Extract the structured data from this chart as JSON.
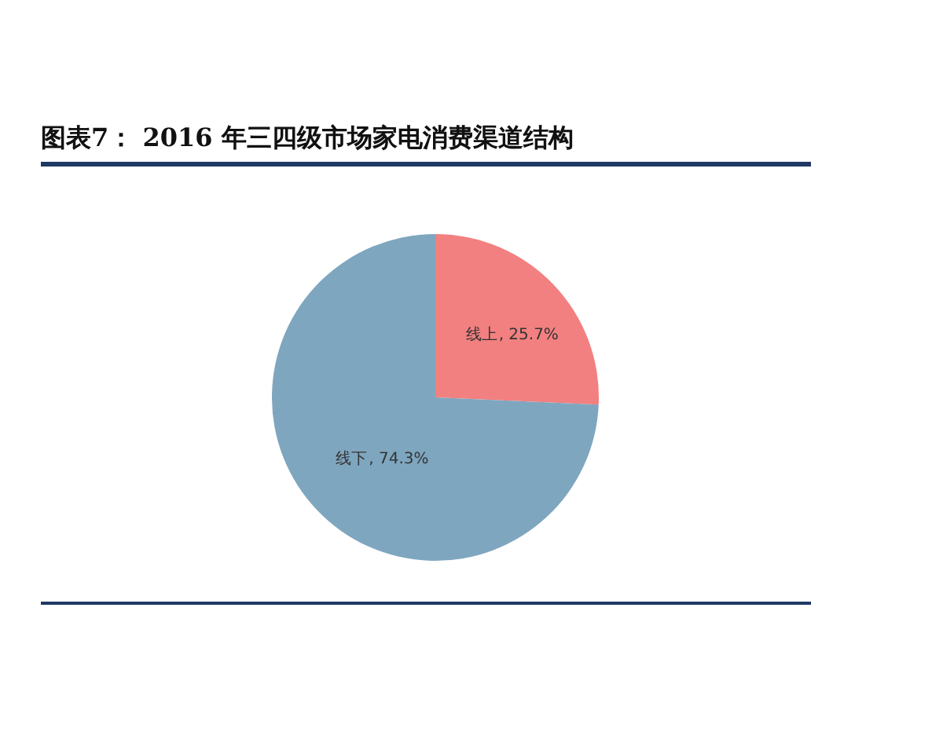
{
  "chart_data": {
    "type": "pie",
    "title": "图表7： 2016 年三四级市场家电消费渠道结构",
    "categories": [
      "线上",
      "线下"
    ],
    "values": [
      25.7,
      74.3
    ],
    "colors": [
      "#f28080",
      "#7fa6bf"
    ],
    "value_labels": [
      ", 25.7%",
      ", 74.3%"
    ],
    "legend": false
  }
}
